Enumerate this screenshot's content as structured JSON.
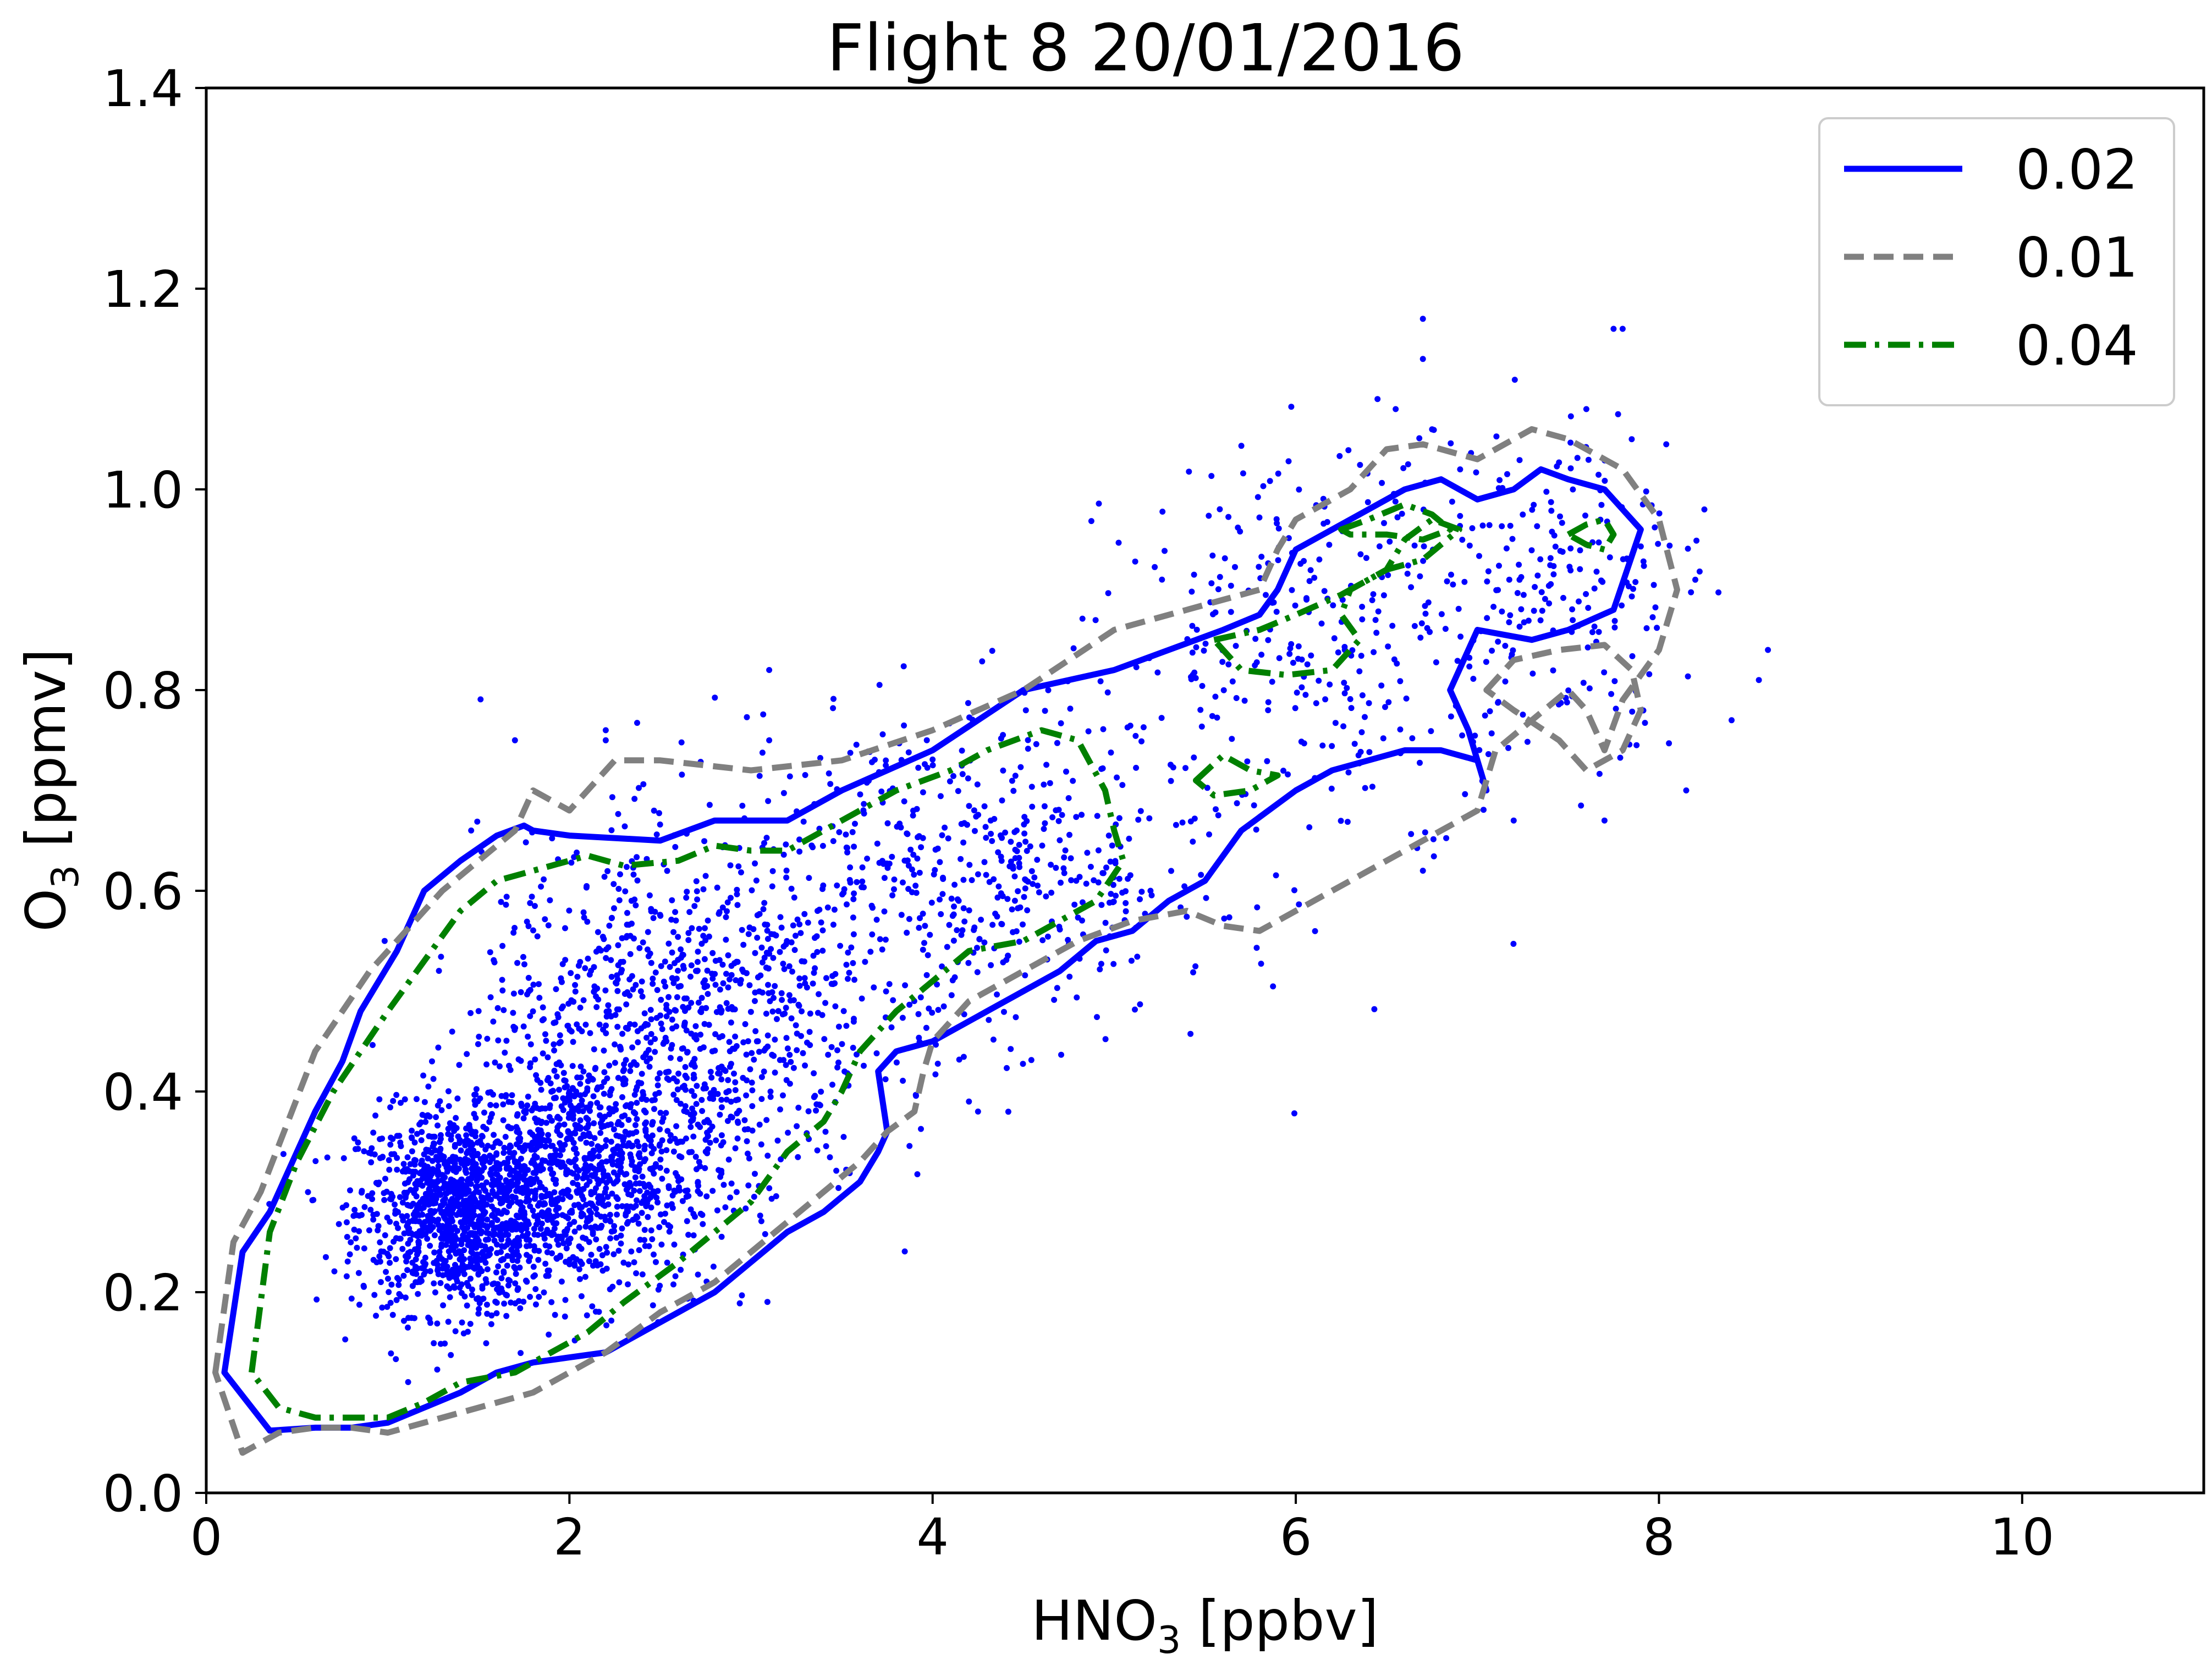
{
  "chart_data": {
    "type": "scatter",
    "title": "Flight 8  20/01/2016",
    "xlabel": {
      "base": "HNO",
      "sub": "3",
      "rest": " [ppbv]"
    },
    "ylabel": {
      "base": "O",
      "sub": "3",
      "rest": " [ppmv]"
    },
    "xlim": [
      0,
      11
    ],
    "ylim": [
      0,
      1.4
    ],
    "xticks": [
      0,
      2,
      4,
      6,
      8,
      10
    ],
    "xtick_labels": [
      "0",
      "2",
      "4",
      "6",
      "8",
      "10"
    ],
    "yticks": [
      0.0,
      0.2,
      0.4,
      0.6,
      0.8,
      1.0,
      1.2,
      1.4
    ],
    "ytick_labels": [
      "0.0",
      "0.2",
      "0.4",
      "0.6",
      "0.8",
      "1.0",
      "1.2",
      "1.4"
    ],
    "grid": false,
    "legend_position": "top-right",
    "scatter": {
      "color": "#0000ff",
      "approx_count": 4000,
      "clusters": [
        {
          "center": [
            1.4,
            0.28
          ],
          "spread": [
            0.28,
            0.05
          ],
          "share": 0.3
        },
        {
          "center": [
            2.1,
            0.32
          ],
          "spread": [
            0.35,
            0.06
          ],
          "share": 0.22
        },
        {
          "center": [
            2.6,
            0.47
          ],
          "spread": [
            0.55,
            0.09
          ],
          "share": 0.22
        },
        {
          "center": [
            4.2,
            0.62
          ],
          "spread": [
            0.7,
            0.08
          ],
          "share": 0.14
        },
        {
          "center": [
            6.3,
            0.86
          ],
          "spread": [
            0.65,
            0.09
          ],
          "share": 0.08
        },
        {
          "center": [
            7.5,
            0.92
          ],
          "spread": [
            0.35,
            0.08
          ],
          "share": 0.04
        }
      ],
      "outliers": [
        [
          6.7,
          1.17
        ],
        [
          7.75,
          1.16
        ],
        [
          7.8,
          1.16
        ],
        [
          6.7,
          1.13
        ],
        [
          6.45,
          1.09
        ],
        [
          6.55,
          1.08
        ],
        [
          7.6,
          1.08
        ],
        [
          7.85,
          1.05
        ],
        [
          8.25,
          0.98
        ],
        [
          8.2,
          0.91
        ],
        [
          8.55,
          0.81
        ],
        [
          8.6,
          0.84
        ],
        [
          8.4,
          0.77
        ],
        [
          8.15,
          0.7
        ],
        [
          7.2,
          0.67
        ],
        [
          7.7,
          0.67
        ],
        [
          6.7,
          0.62
        ],
        [
          4.2,
          0.39
        ],
        [
          4.25,
          0.38
        ],
        [
          3.1,
          0.82
        ],
        [
          2.2,
          0.75
        ],
        [
          2.2,
          0.76
        ],
        [
          1.7,
          0.75
        ],
        [
          3.1,
          0.75
        ]
      ]
    },
    "series": [
      {
        "name": "0.02",
        "color": "#0000ff",
        "dash": "solid",
        "contours": [
          {
            "x": [
              0.1,
              0.2,
              0.35,
              0.45,
              0.6,
              0.75,
              0.85,
              1.05,
              1.2,
              1.4,
              1.6,
              1.75,
              1.8,
              2.0,
              2.5,
              2.8,
              3.2,
              3.5,
              4.0,
              4.5,
              5.0,
              5.3,
              5.6,
              5.8,
              5.9,
              6.0,
              6.3,
              6.6,
              6.8,
              7.0,
              7.2,
              7.35,
              7.5,
              7.7,
              7.9,
              7.75,
              7.5,
              7.3,
              7.0,
              6.85,
              6.95,
              7.05,
              7.0,
              6.8,
              6.6,
              6.2,
              6.0,
              5.7,
              5.5,
              5.3,
              5.1,
              4.9,
              4.7,
              4.3,
              4.0,
              3.8,
              3.7,
              3.75,
              3.7,
              3.6,
              3.4,
              3.2,
              3.0,
              2.8,
              2.6,
              2.4,
              2.2,
              2.0,
              1.8,
              1.6,
              1.4,
              1.2,
              1.0,
              0.8,
              0.6,
              0.35,
              0.1
            ],
            "y": [
              0.12,
              0.24,
              0.28,
              0.32,
              0.38,
              0.43,
              0.48,
              0.54,
              0.6,
              0.63,
              0.655,
              0.665,
              0.66,
              0.655,
              0.65,
              0.67,
              0.67,
              0.7,
              0.74,
              0.8,
              0.82,
              0.84,
              0.86,
              0.875,
              0.9,
              0.94,
              0.97,
              1.0,
              1.01,
              0.99,
              1.0,
              1.02,
              1.01,
              1.0,
              0.96,
              0.88,
              0.86,
              0.85,
              0.86,
              0.8,
              0.76,
              0.7,
              0.73,
              0.74,
              0.74,
              0.72,
              0.7,
              0.66,
              0.61,
              0.59,
              0.56,
              0.55,
              0.52,
              0.48,
              0.45,
              0.44,
              0.42,
              0.36,
              0.34,
              0.31,
              0.28,
              0.26,
              0.23,
              0.2,
              0.18,
              0.16,
              0.14,
              0.135,
              0.13,
              0.12,
              0.1,
              0.085,
              0.07,
              0.065,
              0.065,
              0.062,
              0.12
            ]
          }
        ]
      },
      {
        "name": "0.01",
        "color": "#808080",
        "dash": "dashed",
        "contours": [
          {
            "x": [
              0.05,
              0.15,
              0.3,
              0.45,
              0.6,
              0.75,
              0.9,
              1.1,
              1.3,
              1.5,
              1.7,
              1.8,
              2.0,
              2.2,
              2.25,
              2.5,
              3.0,
              3.5,
              4.0,
              4.5,
              5.0,
              5.4,
              5.6,
              5.8,
              5.9,
              6.0,
              6.3,
              6.5,
              6.7,
              7.0,
              7.3,
              7.5,
              7.8,
              8.0,
              8.1,
              8.0,
              7.8,
              7.7,
              7.6,
              7.5,
              7.3,
              7.1,
              7.0,
              6.8,
              6.6,
              6.4,
              6.2,
              6.0,
              5.8,
              5.6,
              5.4,
              5.1,
              4.8,
              4.5,
              4.2,
              4.0,
              3.95,
              3.9,
              3.75,
              3.6,
              3.4,
              3.2,
              3.0,
              2.8,
              2.5,
              2.2,
              2.0,
              1.8,
              1.6,
              1.4,
              1.2,
              1.0,
              0.8,
              0.6,
              0.4,
              0.2,
              0.05
            ],
            "y": [
              0.12,
              0.25,
              0.3,
              0.37,
              0.44,
              0.48,
              0.52,
              0.56,
              0.6,
              0.63,
              0.66,
              0.7,
              0.68,
              0.72,
              0.73,
              0.73,
              0.72,
              0.73,
              0.76,
              0.8,
              0.86,
              0.88,
              0.89,
              0.9,
              0.94,
              0.97,
              1.0,
              1.04,
              1.045,
              1.03,
              1.06,
              1.05,
              1.02,
              0.97,
              0.9,
              0.84,
              0.79,
              0.74,
              0.78,
              0.8,
              0.77,
              0.74,
              0.68,
              0.66,
              0.64,
              0.62,
              0.6,
              0.58,
              0.56,
              0.565,
              0.58,
              0.57,
              0.55,
              0.52,
              0.49,
              0.45,
              0.42,
              0.38,
              0.36,
              0.33,
              0.3,
              0.27,
              0.24,
              0.21,
              0.18,
              0.14,
              0.12,
              0.1,
              0.09,
              0.08,
              0.07,
              0.06,
              0.065,
              0.065,
              0.06,
              0.04,
              0.12
            ]
          },
          {
            "x": [
              7.05,
              7.2,
              7.45,
              7.7,
              7.85,
              7.9,
              7.8,
              7.6,
              7.45,
              7.2,
              7.05
            ],
            "y": [
              0.8,
              0.83,
              0.84,
              0.845,
              0.82,
              0.78,
              0.74,
              0.72,
              0.75,
              0.78,
              0.8
            ]
          }
        ]
      },
      {
        "name": "0.04",
        "color": "#008000",
        "dash": "dashdot",
        "contours": [
          {
            "x": [
              0.25,
              0.35,
              0.5,
              0.7,
              0.85,
              1.0,
              1.2,
              1.4,
              1.6,
              1.9,
              2.1,
              2.3,
              2.6,
              2.8,
              3.0,
              3.2,
              3.5,
              3.8,
              4.1,
              4.3,
              4.6,
              4.8,
              4.95,
              5.0,
              5.05,
              4.9,
              4.7,
              4.5,
              4.2,
              4.0,
              3.8,
              3.6,
              3.5,
              3.4,
              3.2,
              3.0,
              2.8,
              2.6,
              2.3,
              2.1,
              1.9,
              1.7,
              1.4,
              1.2,
              1.0,
              0.8,
              0.6,
              0.4,
              0.25
            ],
            "y": [
              0.12,
              0.26,
              0.33,
              0.4,
              0.44,
              0.48,
              0.53,
              0.58,
              0.61,
              0.625,
              0.635,
              0.625,
              0.63,
              0.645,
              0.64,
              0.64,
              0.67,
              0.7,
              0.72,
              0.74,
              0.76,
              0.75,
              0.7,
              0.66,
              0.63,
              0.59,
              0.57,
              0.55,
              0.54,
              0.51,
              0.48,
              0.44,
              0.4,
              0.37,
              0.34,
              0.29,
              0.26,
              0.23,
              0.19,
              0.16,
              0.14,
              0.12,
              0.11,
              0.09,
              0.075,
              0.075,
              0.075,
              0.085,
              0.12
            ]
          },
          {
            "x": [
              5.55,
              5.8,
              6.0,
              6.25,
              6.5,
              6.6,
              6.75,
              6.9,
              6.7,
              6.5,
              6.3,
              6.25,
              6.35,
              6.2,
              5.95,
              5.7,
              5.55
            ],
            "y": [
              0.85,
              0.86,
              0.875,
              0.895,
              0.92,
              0.95,
              0.97,
              0.96,
              0.93,
              0.92,
              0.9,
              0.875,
              0.85,
              0.82,
              0.815,
              0.82,
              0.85
            ]
          },
          {
            "x": [
              6.25,
              6.4,
              6.6,
              6.75,
              6.85,
              6.7,
              6.5,
              6.3,
              6.25
            ],
            "y": [
              0.96,
              0.97,
              0.985,
              0.975,
              0.96,
              0.95,
              0.955,
              0.955,
              0.96
            ]
          },
          {
            "x": [
              5.45,
              5.6,
              5.75,
              5.9,
              5.75,
              5.55,
              5.45
            ],
            "y": [
              0.71,
              0.735,
              0.72,
              0.715,
              0.7,
              0.695,
              0.71
            ]
          },
          {
            "x": [
              7.5,
              7.6,
              7.7,
              7.75,
              7.7,
              7.6,
              7.5
            ],
            "y": [
              0.955,
              0.965,
              0.97,
              0.955,
              0.94,
              0.945,
              0.955
            ]
          }
        ]
      }
    ]
  }
}
